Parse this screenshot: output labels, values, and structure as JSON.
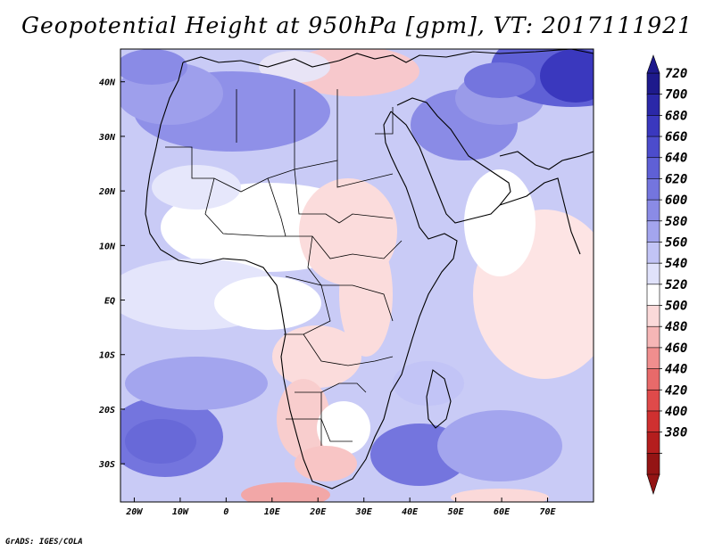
{
  "title": "Geopotential Height at 950hPa [gpm], VT: 2017111921",
  "credit": "GrADS: IGES/COLA",
  "map": {
    "projection": "lat-lon",
    "lon_range": [
      -23,
      80
    ],
    "lat_range": [
      -37,
      46
    ],
    "x_ticks": [
      "20W",
      "10W",
      "0",
      "10E",
      "20E",
      "30E",
      "40E",
      "50E",
      "60E",
      "70E"
    ],
    "y_ticks": [
      "40N",
      "30N",
      "20N",
      "10N",
      "EQ",
      "10S",
      "20S",
      "30S"
    ]
  },
  "colorbar": {
    "levels": [
      "720",
      "700",
      "680",
      "660",
      "640",
      "620",
      "600",
      "580",
      "560",
      "540",
      "520",
      "500",
      "480",
      "460",
      "440",
      "420",
      "400",
      "380"
    ],
    "colors": [
      "#1e1a8c",
      "#2b28a8",
      "#3a38be",
      "#4c4ccc",
      "#5f60d6",
      "#7475de",
      "#8a8be6",
      "#a3a5ee",
      "#c2c4f6",
      "#e0e2fb",
      "#ffffff",
      "#fbd9d9",
      "#f6b6b6",
      "#f08e8e",
      "#e86a6a",
      "#df4a4a",
      "#cf3030",
      "#b41e1e",
      "#941414"
    ]
  }
}
